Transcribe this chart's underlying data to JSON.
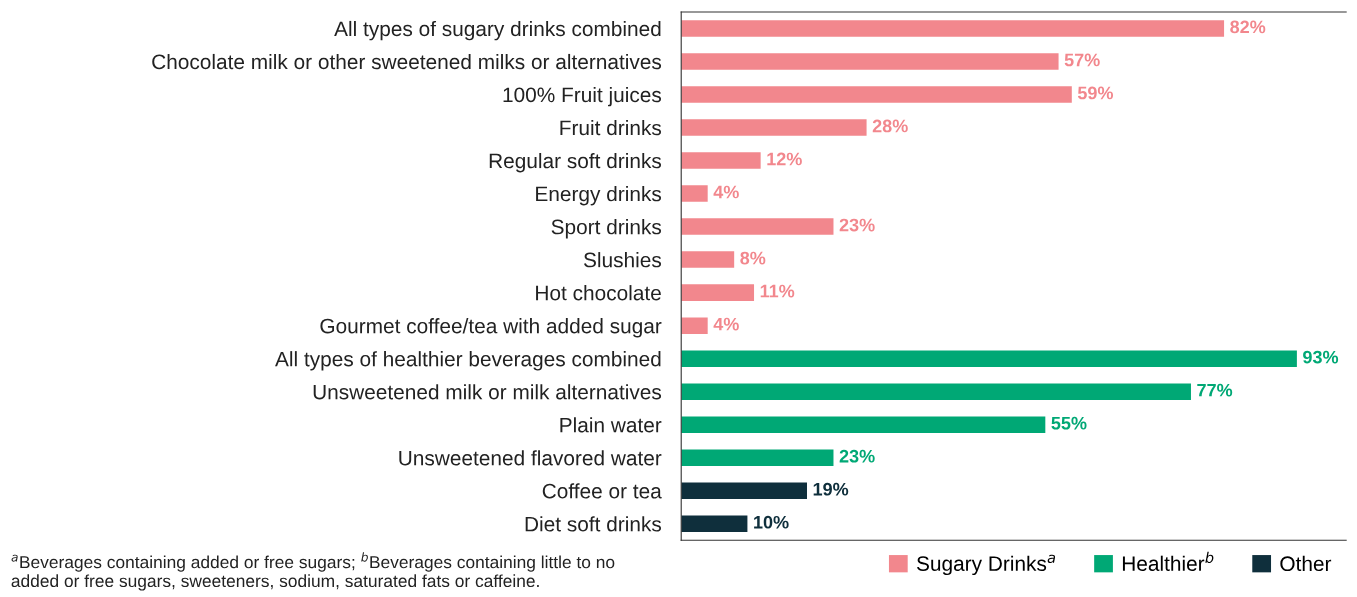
{
  "chart_data": {
    "type": "bar",
    "orientation": "horizontal",
    "legend": "bottom right",
    "categories": [
      "All types of sugary drinks combined",
      "Chocolate milk or other sweetened milks or alternatives",
      "100% Fruit juices",
      "Fruit drinks",
      "Regular soft drinks",
      "Energy drinks",
      "Sport drinks",
      "Slushies",
      "Hot chocolate",
      "Gourmet coffee/tea with added sugar",
      "All types of healthier beverages combined",
      "Unsweetened milk or milk alternatives",
      "Plain water",
      "Unsweetened flavored water",
      "Coffee or tea",
      "Diet soft drinks"
    ],
    "series": [
      {
        "name": "Sugary Drinks$^{a}$",
        "color": "#f2878d",
        "values": [
          82,
          57,
          59,
          28,
          12,
          4,
          23,
          8,
          11,
          4,
          null,
          null,
          null,
          null,
          null,
          null
        ],
        "value_labels": [
          "82%",
          "57%",
          "59%",
          "28%",
          "12%",
          "4%",
          "23%",
          "8%",
          "11%",
          "4%",
          null,
          null,
          null,
          null,
          null,
          null
        ]
      },
      {
        "name": "Healthier$^{b}$",
        "color": "#00a875",
        "values": [
          null,
          null,
          null,
          null,
          null,
          null,
          null,
          null,
          null,
          null,
          93,
          77,
          55,
          23,
          null,
          null
        ],
        "value_labels": [
          null,
          null,
          null,
          null,
          null,
          null,
          null,
          null,
          null,
          null,
          "93%",
          "77%",
          "55%",
          "23%",
          null,
          null
        ]
      },
      {
        "name": "Other",
        "color": "#0f2f3c",
        "values": [
          null,
          null,
          null,
          null,
          null,
          null,
          null,
          null,
          null,
          null,
          null,
          null,
          null,
          null,
          19,
          10
        ],
        "value_labels": [
          null,
          null,
          null,
          null,
          null,
          null,
          null,
          null,
          null,
          null,
          null,
          null,
          null,
          null,
          "19%",
          "10%"
        ]
      }
    ],
    "annotations": [
      "$^{a}$Beverages containing added or free sugars; $^{b}$Beverages containing little to no added or free sugars, sweeteners, sodium, saturated fats or caffeine."
    ]
  }
}
